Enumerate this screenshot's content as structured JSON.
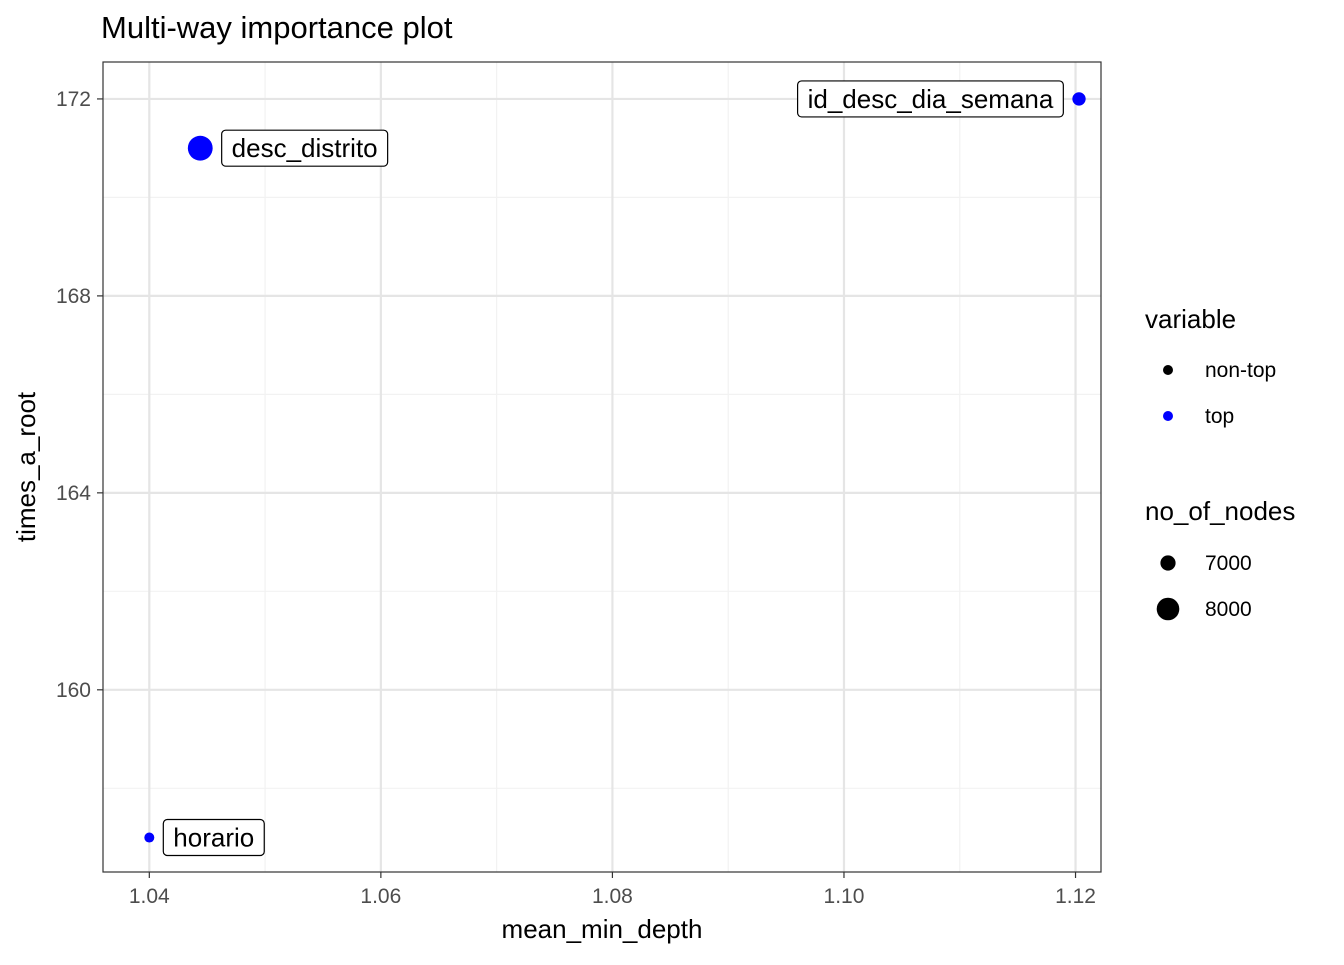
{
  "chart_data": {
    "type": "scatter",
    "title": "Multi-way importance plot",
    "xlabel": "mean_min_depth",
    "ylabel": "times_a_root",
    "xlim": [
      1.036,
      1.1222
    ],
    "ylim": [
      156.3,
      172.75
    ],
    "x_ticks": [
      1.04,
      1.06,
      1.08,
      1.1,
      1.12
    ],
    "x_tick_labels": [
      "1.04",
      "1.06",
      "1.08",
      "1.10",
      "1.12"
    ],
    "x_minor_ticks": [
      1.05,
      1.07,
      1.09,
      1.11
    ],
    "y_ticks": [
      160,
      164,
      168,
      172
    ],
    "y_tick_labels": [
      "160",
      "164",
      "168",
      "172"
    ],
    "y_minor_ticks": [
      158,
      162,
      166,
      170
    ],
    "grid": true,
    "legend_position": "right",
    "points": [
      {
        "label": "desc_distrito",
        "x": 1.0444,
        "y": 171,
        "variable": "top",
        "no_of_nodes": 8300
      },
      {
        "label": "id_desc_dia_semana",
        "x": 1.1203,
        "y": 172,
        "variable": "top",
        "no_of_nodes": 6750
      },
      {
        "label": "horario",
        "x": 1.04,
        "y": 157,
        "variable": "top",
        "no_of_nodes": 6300
      }
    ],
    "legend_color": {
      "title": "variable",
      "items": [
        {
          "label": "non-top",
          "color": "#000000"
        },
        {
          "label": "top",
          "color": "#0000ff"
        }
      ]
    },
    "legend_size": {
      "title": "no_of_nodes",
      "items": [
        {
          "label": "7000",
          "value": 7000
        },
        {
          "label": "8000",
          "value": 8000
        }
      ]
    },
    "colors": {
      "top": "#0000ff",
      "non-top": "#000000",
      "grid_major": "#e5e5e5",
      "grid_minor": "#f2f2f2",
      "panel_border": "#333333",
      "axis_text": "#4d4d4d",
      "text": "#000000"
    }
  }
}
